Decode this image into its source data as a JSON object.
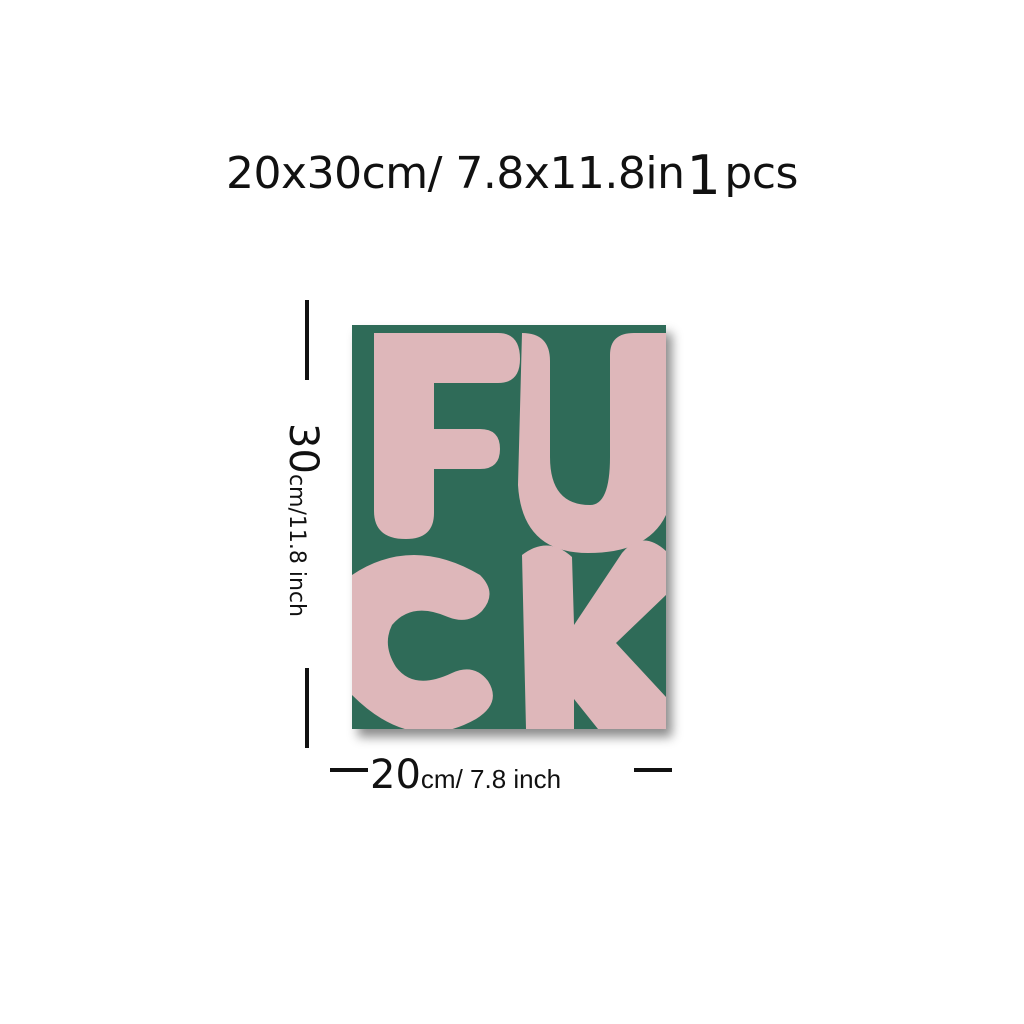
{
  "header": {
    "size_text": "20x30cm/ 7.8x11.8in",
    "quantity_number": "1",
    "quantity_unit": "pcs"
  },
  "height_dimension": {
    "value": "30",
    "unit": "cm/11.8 inch"
  },
  "width_dimension": {
    "value": "20",
    "unit": "cm/ 7.8 inch"
  },
  "poster": {
    "background_color": "#2f6b58",
    "letter_color": "#deb7ba"
  }
}
